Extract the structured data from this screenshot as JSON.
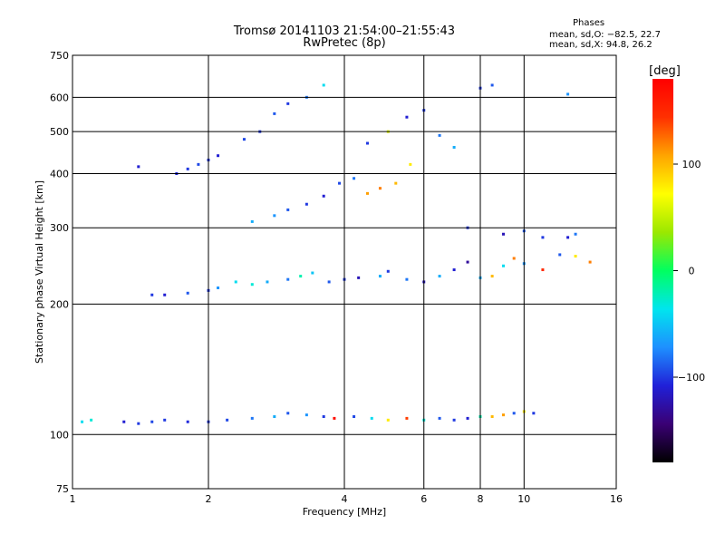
{
  "header": {
    "title": "Tromsø 20141103 21:54:00–21:55:43",
    "subtitle": "RwPretec (8p)"
  },
  "phase_stats": {
    "heading": "Phases",
    "line_o": "mean, sd,O: −82.5, 22.7",
    "line_x": "mean, sd,X: 94.8, 26.2"
  },
  "colorbar": {
    "unit_label": "[deg]",
    "ticks": [
      {
        "value": 100,
        "label": "100"
      },
      {
        "value": 0,
        "label": "0"
      },
      {
        "value": -100,
        "label": "−100"
      }
    ],
    "range": [
      -180,
      180
    ],
    "colors": [
      "#000000",
      "#3a0074",
      "#2020d8",
      "#1e90ff",
      "#00e5ee",
      "#00ff60",
      "#9be800",
      "#ffff00",
      "#ffa500",
      "#ff3000",
      "#ff0000"
    ]
  },
  "chart_data": {
    "type": "scatter",
    "title": "Tromsø 20141103 21:54:00–21:55:43",
    "subtitle": "RwPretec (8p)",
    "xlabel": "Frequency [MHz]",
    "ylabel": "Stationary phase Virtual Height [km]",
    "x_scale": "log",
    "y_scale": "log",
    "xlim": [
      1,
      16
    ],
    "ylim": [
      75,
      750
    ],
    "x_ticks": [
      1,
      2,
      4,
      6,
      8,
      10,
      16
    ],
    "y_ticks": [
      75,
      100,
      200,
      300,
      400,
      500,
      600,
      750
    ],
    "x_gridlines": [
      2,
      4,
      6,
      8,
      10
    ],
    "y_gridlines": [
      100,
      200,
      300,
      400,
      500,
      600
    ],
    "grid": true,
    "color_variable": "phase [deg]",
    "series": [
      {
        "points": [
          [
            1.05,
            107,
            -40
          ],
          [
            1.1,
            108,
            -30
          ],
          [
            1.3,
            107,
            -110
          ],
          [
            1.4,
            106,
            -100
          ],
          [
            1.5,
            107,
            -95
          ],
          [
            1.6,
            108,
            -100
          ],
          [
            1.8,
            107,
            -105
          ],
          [
            2.0,
            107,
            -100
          ],
          [
            2.2,
            108,
            -95
          ],
          [
            2.5,
            109,
            -80
          ],
          [
            2.8,
            110,
            -60
          ],
          [
            3.0,
            112,
            -90
          ],
          [
            3.3,
            111,
            -70
          ],
          [
            3.6,
            110,
            -100
          ],
          [
            3.8,
            109,
            170
          ],
          [
            4.2,
            110,
            -95
          ],
          [
            4.6,
            109,
            -40
          ],
          [
            5.0,
            108,
            80
          ],
          [
            5.5,
            109,
            140
          ],
          [
            6.0,
            108,
            -30
          ],
          [
            6.5,
            109,
            -90
          ],
          [
            7.0,
            108,
            -100
          ],
          [
            7.5,
            109,
            -110
          ],
          [
            8.0,
            110,
            -20
          ],
          [
            8.5,
            110,
            100
          ],
          [
            9.0,
            111,
            110
          ],
          [
            9.5,
            112,
            -90
          ],
          [
            10.0,
            113,
            80
          ],
          [
            10.5,
            112,
            -100
          ]
        ]
      },
      {
        "points": [
          [
            1.5,
            210,
            -100
          ],
          [
            1.6,
            210,
            -110
          ],
          [
            1.8,
            212,
            -90
          ],
          [
            2.0,
            215,
            -100
          ],
          [
            2.1,
            218,
            -70
          ],
          [
            2.3,
            225,
            -40
          ],
          [
            2.5,
            222,
            -30
          ],
          [
            2.7,
            225,
            -60
          ],
          [
            3.0,
            228,
            -80
          ],
          [
            3.2,
            232,
            -20
          ],
          [
            3.4,
            236,
            -50
          ],
          [
            3.7,
            225,
            -90
          ],
          [
            4.0,
            228,
            -100
          ],
          [
            4.3,
            230,
            -120
          ],
          [
            4.8,
            232,
            -60
          ],
          [
            5.0,
            238,
            -100
          ],
          [
            5.5,
            228,
            -80
          ],
          [
            6.0,
            225,
            -120
          ],
          [
            6.5,
            232,
            -60
          ],
          [
            7.0,
            240,
            -110
          ],
          [
            7.5,
            250,
            -130
          ],
          [
            8.0,
            230,
            -60
          ],
          [
            8.5,
            232,
            100
          ],
          [
            9.0,
            245,
            -40
          ],
          [
            9.5,
            255,
            120
          ],
          [
            10.0,
            248,
            -70
          ],
          [
            11.0,
            240,
            150
          ],
          [
            12.0,
            260,
            -90
          ],
          [
            13.0,
            258,
            80
          ]
        ]
      },
      {
        "points": [
          [
            1.4,
            415,
            -110
          ],
          [
            1.7,
            400,
            -105
          ],
          [
            1.8,
            410,
            -100
          ],
          [
            1.9,
            420,
            -95
          ],
          [
            2.0,
            430,
            -100
          ],
          [
            2.1,
            440,
            -110
          ],
          [
            2.4,
            480,
            -95
          ],
          [
            2.6,
            500,
            -100
          ],
          [
            2.8,
            550,
            -90
          ],
          [
            3.0,
            580,
            -100
          ],
          [
            3.3,
            600,
            -80
          ],
          [
            3.6,
            640,
            -40
          ],
          [
            2.5,
            310,
            -60
          ],
          [
            2.8,
            320,
            -70
          ],
          [
            3.0,
            330,
            -90
          ],
          [
            3.3,
            340,
            -100
          ],
          [
            3.6,
            355,
            -110
          ],
          [
            3.9,
            380,
            -95
          ],
          [
            4.2,
            390,
            -80
          ],
          [
            4.5,
            360,
            110
          ],
          [
            4.8,
            370,
            120
          ],
          [
            5.2,
            380,
            100
          ],
          [
            5.6,
            420,
            80
          ],
          [
            4.5,
            470,
            -100
          ],
          [
            5.0,
            500,
            60
          ],
          [
            5.5,
            540,
            -110
          ],
          [
            6.0,
            560,
            -100
          ],
          [
            6.5,
            490,
            -80
          ],
          [
            7.0,
            460,
            -60
          ],
          [
            8.0,
            630,
            -100
          ],
          [
            8.5,
            640,
            -90
          ],
          [
            12.5,
            610,
            -70
          ],
          [
            10.0,
            295,
            -90
          ],
          [
            11.0,
            285,
            -100
          ],
          [
            12.5,
            285,
            -110
          ],
          [
            13.0,
            290,
            -80
          ],
          [
            14.0,
            250,
            120
          ],
          [
            7.5,
            300,
            -100
          ],
          [
            9.0,
            290,
            -120
          ]
        ]
      }
    ]
  }
}
